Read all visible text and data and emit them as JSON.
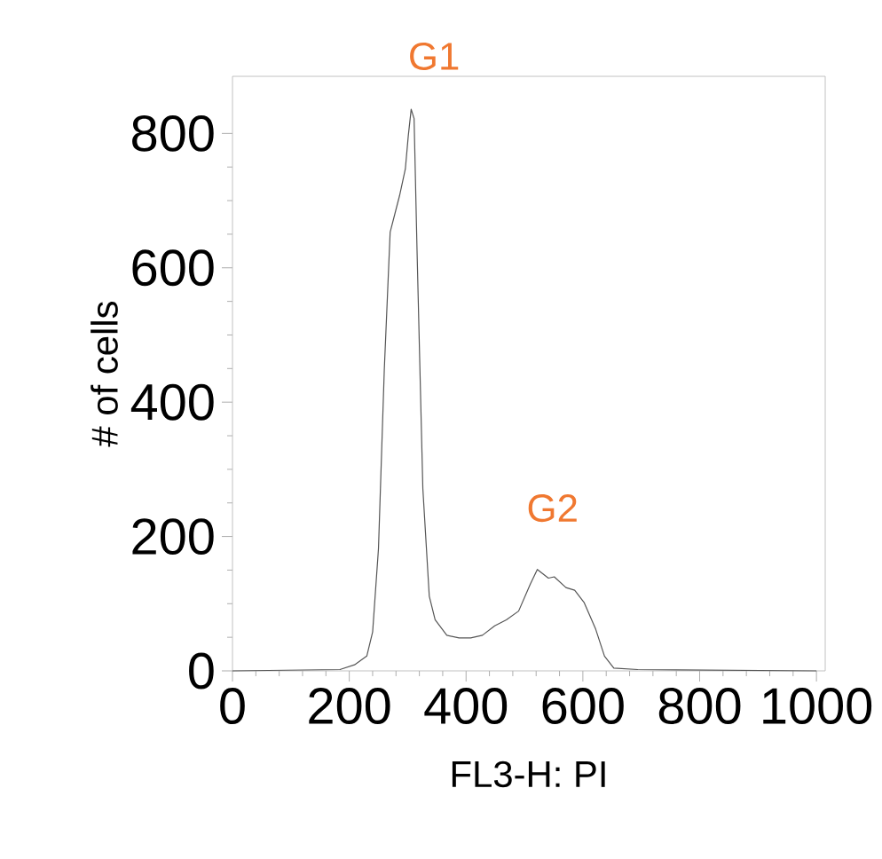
{
  "chart_data": {
    "type": "line",
    "xlabel": "FL3-H: PI",
    "ylabel": "# of cells",
    "x": [
      0,
      184,
      209,
      230,
      240,
      250,
      260,
      270,
      286,
      296,
      301,
      306,
      311,
      316,
      326,
      337,
      347,
      367,
      388,
      408,
      428,
      449,
      469,
      490,
      510,
      522,
      541,
      551,
      571,
      586,
      602,
      622,
      637,
      653,
      694,
      1000
    ],
    "series": [
      {
        "color": "#555555",
        "values": [
          0,
          2,
          9,
          22,
          58,
          182,
          449,
          653,
          707,
          747,
          796,
          836,
          822,
          627,
          271,
          111,
          76,
          53,
          49,
          49,
          53,
          67,
          76,
          89,
          129,
          151,
          138,
          140,
          124,
          120,
          102,
          62,
          22,
          4,
          2,
          0
        ]
      }
    ],
    "xlim": [
      0,
      1015
    ],
    "ylim": [
      0,
      885
    ],
    "xticks": [
      0,
      200,
      400,
      600,
      800,
      1000
    ],
    "yticks": [
      0,
      200,
      400,
      600,
      800
    ],
    "annotations": [
      "G1",
      "G2"
    ],
    "grid": false,
    "marker": "none",
    "line_style": "solid"
  }
}
